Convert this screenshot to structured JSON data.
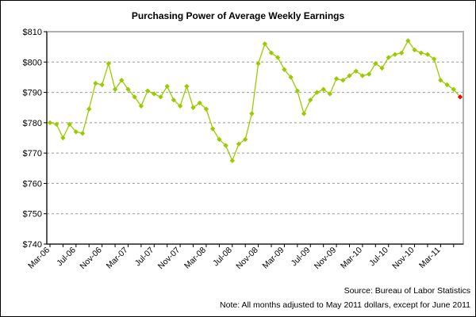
{
  "chart_data": {
    "type": "line",
    "title": "Purchasing Power of Average Weekly Earnings",
    "xlabel": "",
    "ylabel": "",
    "ylim": [
      740,
      810
    ],
    "yticks": [
      "$740",
      "$750",
      "$760",
      "$770",
      "$780",
      "$790",
      "$800",
      "$810"
    ],
    "xtick_labels": [
      "Mar-06",
      "Jul-06",
      "Nov-06",
      "Mar-07",
      "Jul-07",
      "Nov-07",
      "Mar-08",
      "Jul-08",
      "Nov-08",
      "Mar-09",
      "Jul-09",
      "Nov-09",
      "Mar-10",
      "Jul-10",
      "Nov-10",
      "Mar-11"
    ],
    "grid": "horizontal dashed",
    "legend": "none",
    "x_start": "Mar-06",
    "x_end": "Jun-11",
    "series": [
      {
        "color": "#99cc00",
        "highlight_last_color": "#ff0000",
        "values": [
          780,
          779.5,
          775,
          779.5,
          777,
          776.5,
          784.5,
          793,
          792.5,
          799.5,
          791,
          794,
          791,
          788.5,
          785.5,
          790.5,
          789.5,
          788.5,
          792,
          787.5,
          785.5,
          792,
          785,
          786.5,
          784.5,
          778,
          774.5,
          772.5,
          767.5,
          773,
          774.5,
          783,
          799.5,
          806,
          803,
          801.5,
          797.5,
          795,
          790.5,
          783,
          787.5,
          790,
          791,
          789.5,
          794.5,
          794,
          795.5,
          797,
          795.5,
          796,
          799.5,
          798,
          801.5,
          802.5,
          803,
          807,
          804,
          803,
          802.5,
          801,
          794,
          792.5,
          791,
          788.5
        ]
      }
    ]
  },
  "footer": {
    "source": "Source: Bureau of Labor Statistics",
    "note": "Note: All months adjusted to May 2011 dollars, except for June 2011"
  }
}
